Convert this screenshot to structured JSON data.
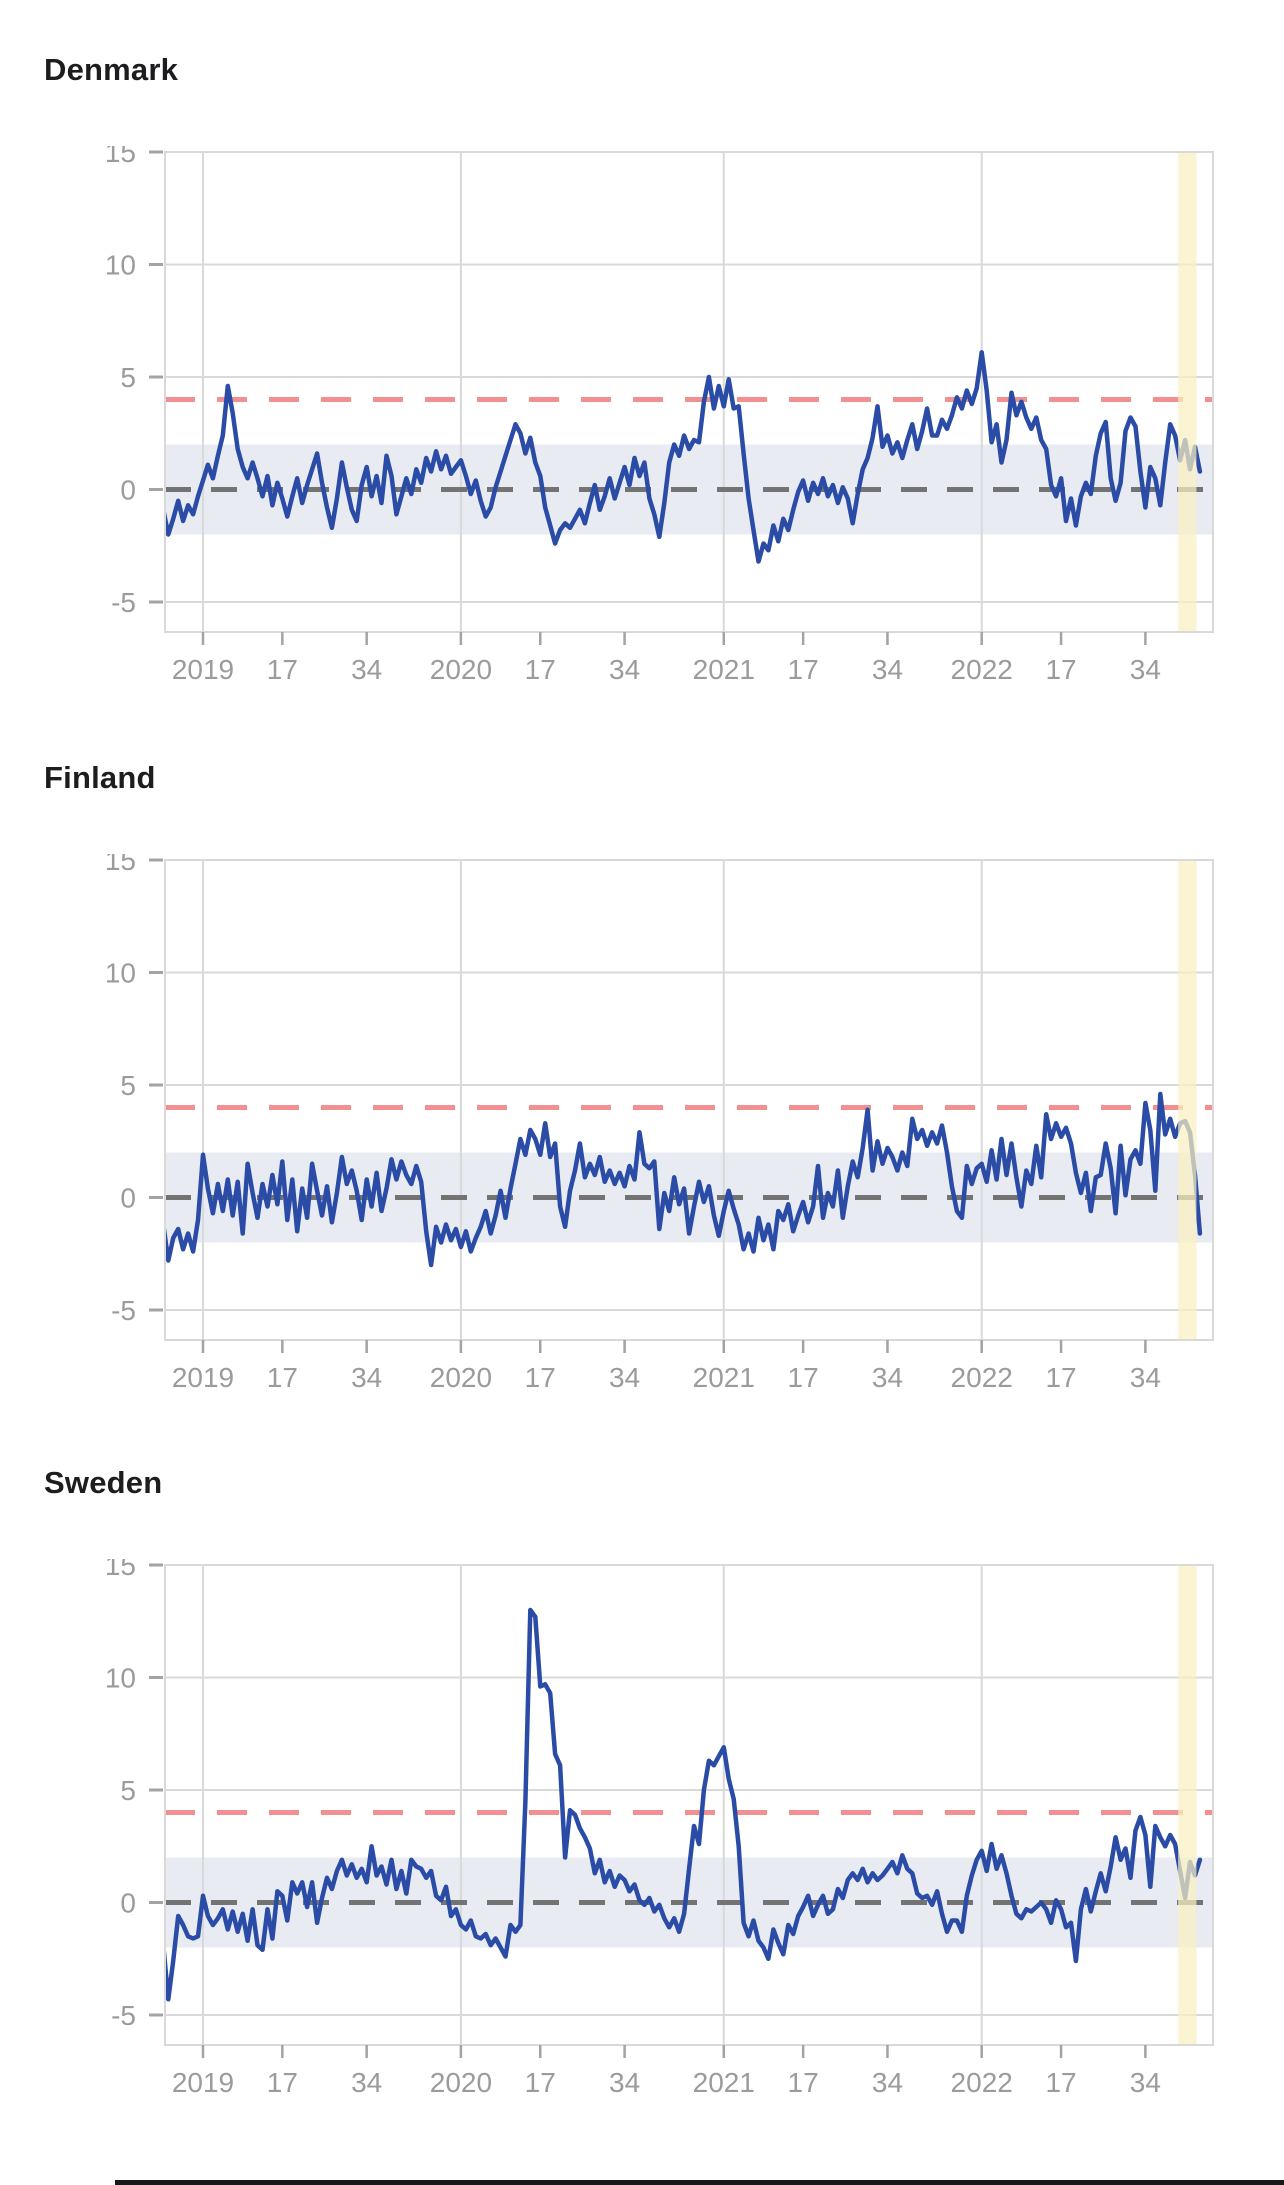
{
  "style": {
    "page_bg": "#ffffff",
    "title_text": "#1d1d1f",
    "tick_text": "#9b9b9b",
    "tick_mark": "#a3a3a3",
    "grid": "#d9d9d9",
    "normal_band_fill": "#e8ebf2",
    "red_dashed_line": "#f29091",
    "zero_dashed_line": "#737373",
    "data_line": "#2a4ca6",
    "recent_weeks_highlight": "rgba(249,240,193,0.72)",
    "bottom_bar": "#181818"
  },
  "axis": {
    "y_ticks": [
      15,
      10,
      5,
      0,
      -5
    ],
    "x_ticks": [
      {
        "label": "2019",
        "week": 8
      },
      {
        "label": "17",
        "week": 24
      },
      {
        "label": "34",
        "week": 41
      },
      {
        "label": "2020",
        "week": 60
      },
      {
        "label": "17",
        "week": 76
      },
      {
        "label": "34",
        "week": 93
      },
      {
        "label": "2021",
        "week": 113
      },
      {
        "label": "17",
        "week": 129
      },
      {
        "label": "34",
        "week": 146
      },
      {
        "label": "2022",
        "week": 165
      },
      {
        "label": "17",
        "week": 181
      },
      {
        "label": "34",
        "week": 198
      }
    ],
    "year_grid_weeks": [
      8,
      60,
      113,
      165
    ],
    "red_line_value": 4,
    "zero_line_value": 0,
    "normal_band": [
      -2,
      2
    ],
    "highlight_weeks": [
      204.6,
      208.3
    ]
  },
  "chart_data": [
    {
      "type": "line",
      "title": "Denmark",
      "x_axis": "weeks 2019-2022 (ticks at week 17 and 34 of each year)",
      "ylim": [
        -6.3,
        15
      ],
      "grid": true,
      "legend": false,
      "values": [
        -0.9,
        -2.0,
        -1.3,
        -0.5,
        -1.4,
        -0.7,
        -1.1,
        -0.3,
        0.4,
        1.1,
        0.5,
        1.5,
        2.4,
        4.6,
        3.4,
        1.8,
        1.0,
        0.5,
        1.2,
        0.5,
        -0.3,
        0.6,
        -0.7,
        0.3,
        -0.4,
        -1.2,
        -0.3,
        0.5,
        -0.6,
        0.2,
        0.9,
        1.6,
        0.3,
        -0.8,
        -1.7,
        -0.4,
        1.2,
        0.1,
        -0.9,
        -1.4,
        0.2,
        1.0,
        -0.3,
        0.6,
        -0.6,
        1.5,
        0.6,
        -1.1,
        -0.3,
        0.5,
        -0.2,
        0.9,
        0.3,
        1.4,
        0.8,
        1.7,
        0.9,
        1.5,
        0.7,
        1.0,
        1.3,
        0.6,
        -0.2,
        0.4,
        -0.5,
        -1.2,
        -0.8,
        0.1,
        0.8,
        1.5,
        2.2,
        2.9,
        2.5,
        1.6,
        2.3,
        1.2,
        0.6,
        -0.8,
        -1.6,
        -2.4,
        -1.8,
        -1.5,
        -1.7,
        -1.3,
        -0.9,
        -1.5,
        -0.6,
        0.2,
        -0.9,
        -0.3,
        0.5,
        -0.4,
        0.3,
        1.0,
        0.2,
        1.4,
        0.6,
        1.2,
        -0.4,
        -1.1,
        -2.1,
        -0.6,
        1.2,
        2.0,
        1.5,
        2.4,
        1.8,
        2.2,
        2.1,
        3.9,
        5.0,
        3.6,
        4.6,
        3.7,
        4.9,
        3.6,
        3.7,
        1.6,
        -0.4,
        -1.8,
        -3.2,
        -2.4,
        -2.7,
        -1.6,
        -2.3,
        -1.3,
        -1.8,
        -0.9,
        -0.1,
        0.4,
        -0.5,
        0.3,
        -0.2,
        0.5,
        -0.3,
        0.2,
        -0.6,
        0.1,
        -0.4,
        -1.5,
        -0.2,
        0.9,
        1.4,
        2.3,
        3.7,
        1.9,
        2.4,
        1.6,
        2.1,
        1.4,
        2.2,
        2.9,
        1.8,
        2.6,
        3.6,
        2.4,
        2.4,
        3.1,
        2.7,
        3.3,
        4.1,
        3.6,
        4.4,
        3.8,
        4.5,
        6.1,
        4.4,
        2.1,
        2.9,
        1.2,
        2.2,
        4.3,
        3.3,
        3.9,
        3.2,
        2.7,
        3.2,
        2.2,
        1.8,
        0.2,
        -0.3,
        0.5,
        -1.4,
        -0.4,
        -1.6,
        -0.3,
        0.3,
        -0.2,
        1.5,
        2.5,
        3.0,
        0.5,
        -0.5,
        0.3,
        2.6,
        3.2,
        2.8,
        0.8,
        -0.8,
        1.0,
        0.5,
        -0.7,
        1.2,
        2.9,
        2.4,
        1.3,
        2.2,
        0.9,
        1.9,
        0.8
      ]
    },
    {
      "type": "line",
      "title": "Finland",
      "x_axis": "weeks 2019-2022 (ticks at week 17 and 34 of each year)",
      "ylim": [
        -6.3,
        15
      ],
      "grid": true,
      "legend": false,
      "values": [
        -1.2,
        -2.8,
        -1.8,
        -1.4,
        -2.3,
        -1.6,
        -2.4,
        -1.0,
        1.9,
        0.4,
        -0.7,
        0.6,
        -0.6,
        0.8,
        -0.8,
        0.7,
        -1.6,
        1.5,
        0.2,
        -0.9,
        0.6,
        -0.4,
        1.0,
        -0.3,
        1.6,
        -1.0,
        0.8,
        -1.5,
        0.4,
        -0.9,
        1.5,
        0.3,
        -0.8,
        0.5,
        -1.1,
        0.2,
        1.8,
        0.6,
        1.2,
        0.3,
        -1.0,
        0.8,
        -0.4,
        1.1,
        -0.6,
        0.4,
        1.7,
        0.8,
        1.6,
        1.0,
        0.6,
        1.4,
        0.7,
        -1.5,
        -3.0,
        -1.3,
        -2.0,
        -1.2,
        -1.9,
        -1.4,
        -2.2,
        -1.5,
        -2.4,
        -1.8,
        -1.3,
        -0.6,
        -1.6,
        -0.8,
        0.3,
        -0.9,
        0.4,
        1.5,
        2.6,
        1.9,
        3.0,
        2.6,
        1.9,
        3.3,
        1.8,
        2.4,
        -0.4,
        -1.3,
        0.3,
        1.2,
        2.4,
        0.9,
        1.5,
        1.0,
        1.8,
        0.7,
        1.2,
        0.6,
        1.1,
        0.5,
        1.4,
        0.8,
        2.9,
        1.5,
        1.3,
        1.6,
        -1.4,
        0.2,
        -0.6,
        0.9,
        -0.3,
        0.4,
        -1.6,
        -0.4,
        0.7,
        -0.2,
        0.5,
        -0.8,
        -1.7,
        -0.6,
        0.3,
        -0.5,
        -1.2,
        -2.3,
        -1.6,
        -2.4,
        -0.9,
        -1.9,
        -1.2,
        -2.3,
        -0.6,
        -1.0,
        -0.3,
        -1.5,
        -0.8,
        -0.2,
        -1.1,
        -0.4,
        1.4,
        -0.9,
        0.2,
        -0.4,
        1.2,
        -0.9,
        0.5,
        1.6,
        0.9,
        2.2,
        3.9,
        1.2,
        2.5,
        1.5,
        2.2,
        1.8,
        1.2,
        2.0,
        1.4,
        3.5,
        2.6,
        3.0,
        2.3,
        2.9,
        2.4,
        3.2,
        2.0,
        0.5,
        -0.6,
        -0.9,
        1.4,
        0.6,
        1.3,
        1.5,
        0.7,
        2.1,
        0.8,
        2.6,
        1.0,
        2.4,
        0.9,
        -0.4,
        1.2,
        0.6,
        2.3,
        0.9,
        3.7,
        2.6,
        3.3,
        2.7,
        3.1,
        2.4,
        1.1,
        0.2,
        1.1,
        -0.6,
        0.9,
        1.0,
        2.4,
        1.3,
        -0.7,
        2.3,
        0.1,
        1.7,
        2.1,
        1.5,
        4.2,
        3.0,
        0.3,
        4.6,
        2.8,
        3.5,
        2.7,
        3.3,
        3.4,
        2.9,
        1.0,
        -1.6
      ]
    },
    {
      "type": "line",
      "title": "Sweden",
      "x_axis": "weeks 2019-2022 (ticks at week 17 and 34 of each year)",
      "ylim": [
        -6.3,
        15
      ],
      "grid": true,
      "legend": false,
      "values": [
        -1.9,
        -4.3,
        -2.6,
        -0.6,
        -1.0,
        -1.5,
        -1.6,
        -1.5,
        0.3,
        -0.6,
        -1.0,
        -0.7,
        -0.3,
        -1.2,
        -0.4,
        -1.3,
        -0.5,
        -1.7,
        -0.3,
        -1.9,
        -2.1,
        -0.3,
        -1.6,
        0.5,
        0.3,
        -0.8,
        0.9,
        0.4,
        0.9,
        -0.2,
        0.9,
        -0.9,
        0.2,
        1.1,
        0.6,
        1.4,
        1.9,
        1.2,
        1.7,
        1.1,
        1.5,
        0.9,
        2.5,
        1.2,
        1.6,
        0.8,
        1.9,
        0.6,
        1.4,
        0.4,
        1.9,
        1.6,
        1.5,
        1.1,
        1.4,
        0.3,
        0.1,
        0.7,
        -0.6,
        -0.3,
        -1.0,
        -1.2,
        -0.8,
        -1.5,
        -1.6,
        -1.4,
        -1.9,
        -1.6,
        -2.0,
        -2.4,
        -1.0,
        -1.3,
        -1.0,
        4.5,
        13.0,
        12.7,
        9.6,
        9.7,
        9.3,
        6.6,
        6.1,
        2.0,
        4.1,
        3.9,
        3.3,
        2.9,
        2.4,
        1.3,
        1.9,
        0.9,
        1.4,
        0.7,
        1.2,
        1.0,
        0.5,
        0.8,
        0.1,
        -0.1,
        0.2,
        -0.4,
        -0.1,
        -0.7,
        -1.1,
        -0.7,
        -1.3,
        -0.5,
        1.5,
        3.4,
        2.6,
        5.0,
        6.3,
        6.1,
        6.5,
        6.9,
        5.5,
        4.6,
        2.5,
        -0.9,
        -1.5,
        -0.8,
        -1.7,
        -2.0,
        -2.5,
        -1.2,
        -1.8,
        -2.3,
        -1.0,
        -1.4,
        -0.6,
        -0.2,
        0.3,
        -0.6,
        -0.1,
        0.3,
        -0.5,
        -0.3,
        0.6,
        0.2,
        1.0,
        1.3,
        1.0,
        1.5,
        0.9,
        1.3,
        1.0,
        1.2,
        1.5,
        1.8,
        1.3,
        2.1,
        1.5,
        1.3,
        0.4,
        0.2,
        0.3,
        -0.1,
        0.5,
        -0.5,
        -1.3,
        -0.8,
        -0.8,
        -1.3,
        0.3,
        1.2,
        1.9,
        2.3,
        1.4,
        2.6,
        1.5,
        2.1,
        1.3,
        0.3,
        -0.5,
        -0.7,
        -0.3,
        -0.4,
        -0.2,
        0,
        -0.3,
        -0.9,
        0.1,
        -0.3,
        -1.1,
        -0.9,
        -2.6,
        -0.3,
        0.6,
        -0.4,
        0.5,
        1.3,
        0.5,
        1.6,
        2.9,
        1.9,
        2.4,
        1.1,
        3.2,
        3.8,
        3.0,
        0.7,
        3.4,
        2.9,
        2.5,
        3.0,
        2.6,
        1.4,
        0.2,
        1.8,
        1.2,
        1.9
      ]
    }
  ]
}
